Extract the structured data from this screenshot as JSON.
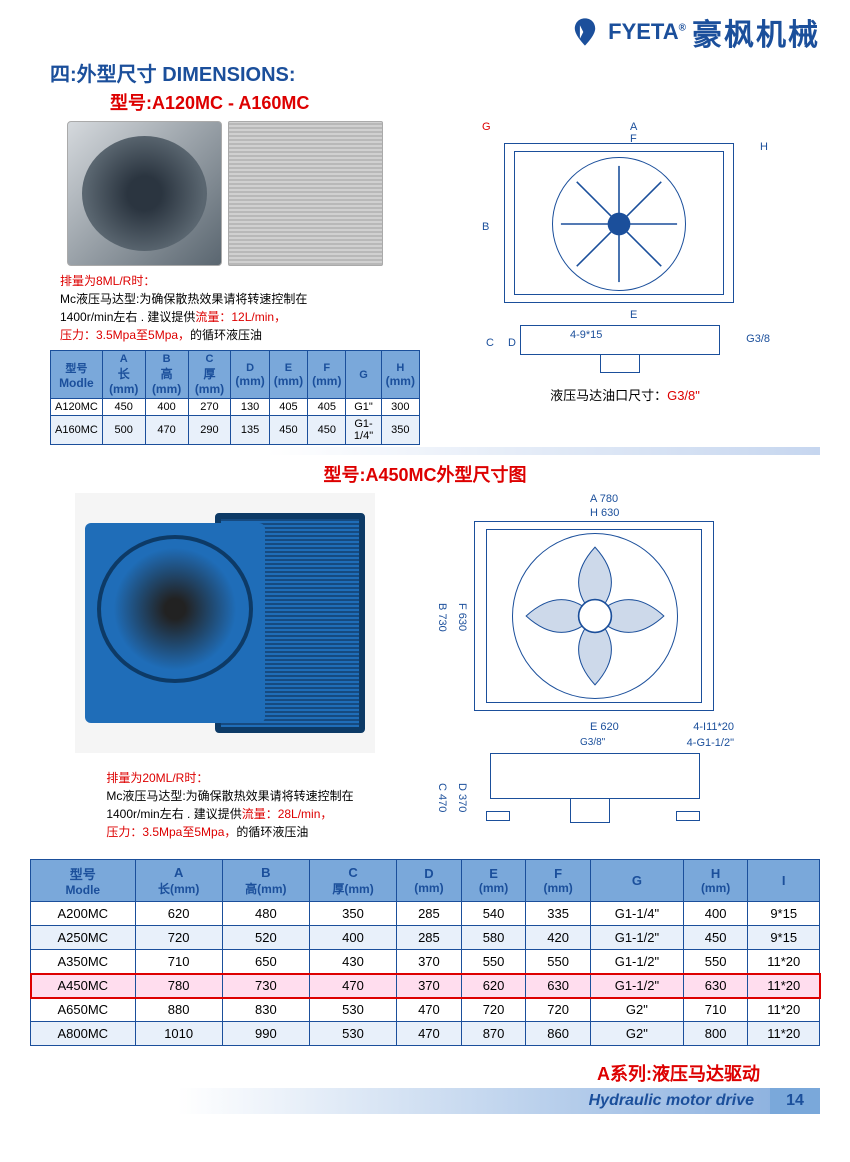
{
  "header": {
    "brand_en": "FYETA",
    "brand_cn": "豪枫机械",
    "reg_mark": "®"
  },
  "section1": {
    "title": "四:外型尺寸 DIMENSIONS:",
    "model_title": "型号:A120MC  -  A160MC",
    "note_prefix": "排量为8ML/R时：",
    "note_line1": "Mc液压马达型:为确保散热效果请将转速控制在",
    "note_line2a": "1400r/min左右 .    建议提供",
    "note_line2b": "流量：12L/min，",
    "note_line3a": "压力：3.5Mpa至5Mpa，",
    "note_line3b": "的循环液压油",
    "caption_a": "液压马达油口尺寸：",
    "caption_b": "G3/8\"",
    "diagram_labels": {
      "G": "G",
      "A": "A",
      "F": "F",
      "H": "H",
      "B": "B",
      "E": "E",
      "C": "C",
      "D": "D",
      "holes": "4-9*15",
      "port": "G3/8"
    }
  },
  "table1": {
    "headers": [
      "型号",
      "A",
      "B",
      "C",
      "D",
      "E",
      "F",
      "G",
      "H"
    ],
    "subheads": [
      "Modle",
      "长(mm)",
      "高(mm)",
      "厚(mm)",
      "(mm)",
      "(mm)",
      "(mm)",
      "",
      "(mm)"
    ],
    "rows": [
      [
        "A120MC",
        "450",
        "400",
        "270",
        "130",
        "405",
        "405",
        "G1\"",
        "300"
      ],
      [
        "A160MC",
        "500",
        "470",
        "290",
        "135",
        "450",
        "450",
        "G1-1/4\"",
        "350"
      ]
    ]
  },
  "section2": {
    "model_title": "型号:A450MC外型尺寸图",
    "note_prefix": "排量为20ML/R时：",
    "note_line1": "Mc液压马达型:为确保散热效果请将转速控制在",
    "note_line2a": "1400r/min左右 .    建议提供",
    "note_line2b": "流量：28L/min，",
    "note_line3a": "压力：3.5Mpa至5Mpa，",
    "note_line3b": "的循环液压油",
    "diagram_labels": {
      "A": "A",
      "Aval": "780",
      "H": "H",
      "Hval": "630",
      "B": "B",
      "Bval": "730",
      "F": "F",
      "Fval": "630",
      "E": "E",
      "Eval": "620",
      "port1": "G3/8\"",
      "holes": "4-I",
      "holesval": "11*20",
      "port2": "4-G",
      "port2val": "1-1/2\"",
      "C": "C",
      "Cval": "470",
      "D": "D",
      "Dval": "370"
    }
  },
  "table2": {
    "headers": [
      "型号",
      "A",
      "B",
      "C",
      "D",
      "E",
      "F",
      "G",
      "H",
      "I"
    ],
    "subheads": [
      "Modle",
      "长(mm)",
      "高(mm)",
      "厚(mm)",
      "(mm)",
      "(mm)",
      "(mm)",
      "",
      "(mm)",
      ""
    ],
    "rows": [
      [
        "A200MC",
        "620",
        "480",
        "350",
        "285",
        "540",
        "335",
        "G1-1/4\"",
        "400",
        "9*15"
      ],
      [
        "A250MC",
        "720",
        "520",
        "400",
        "285",
        "580",
        "420",
        "G1-1/2\"",
        "450",
        "9*15"
      ],
      [
        "A350MC",
        "710",
        "650",
        "430",
        "370",
        "550",
        "550",
        "G1-1/2\"",
        "550",
        "11*20"
      ],
      [
        "A450MC",
        "780",
        "730",
        "470",
        "370",
        "620",
        "630",
        "G1-1/2\"",
        "630",
        "11*20"
      ],
      [
        "A650MC",
        "880",
        "830",
        "530",
        "470",
        "720",
        "720",
        "G2\"",
        "710",
        "11*20"
      ],
      [
        "A800MC",
        "1010",
        "990",
        "530",
        "470",
        "870",
        "860",
        "G2\"",
        "800",
        "11*20"
      ]
    ],
    "highlight_row_index": 3
  },
  "footer": {
    "series_title": "A系列:液压马达驱动",
    "subtitle_en": "Hydraulic motor drive",
    "page": "14"
  },
  "colors": {
    "brand_blue": "#1b4f9b",
    "accent_red": "#d00",
    "table_header_bg": "#7aa8da",
    "row_alt_bg": "#e8f0fa"
  }
}
